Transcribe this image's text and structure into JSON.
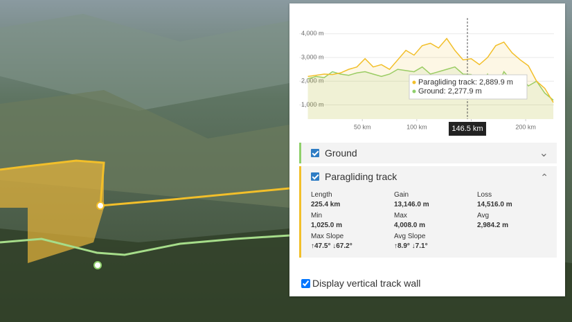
{
  "chart_data": {
    "type": "line",
    "x": [
      0,
      7.5,
      15,
      22.5,
      30,
      37.5,
      45,
      52.5,
      60,
      67.5,
      75,
      82.5,
      90,
      97.5,
      105,
      112.5,
      120,
      127.5,
      135,
      142.5,
      150,
      157.5,
      165,
      172.5,
      180,
      187.5,
      195,
      202.5,
      210,
      217.5,
      225.4
    ],
    "series": [
      {
        "name": "Ground",
        "color": "#8fcf6b",
        "values": [
          2100,
          2200,
          2150,
          2400,
          2300,
          2250,
          2350,
          2400,
          2300,
          2200,
          2300,
          2500,
          2450,
          2400,
          2600,
          2300,
          2400,
          2500,
          2600,
          2300,
          2280,
          1900,
          2300,
          1600,
          2400,
          2000,
          2200,
          1800,
          2000,
          1500,
          1200
        ]
      },
      {
        "name": "Paragliding track",
        "color": "#f2bf2a",
        "values": [
          2200,
          2250,
          2300,
          2280,
          2350,
          2500,
          2600,
          2950,
          2600,
          2700,
          2500,
          2900,
          3300,
          3100,
          3500,
          3600,
          3400,
          3800,
          3300,
          2900,
          2950,
          2700,
          3000,
          3500,
          3650,
          3200,
          2900,
          2650,
          2000,
          1700,
          1100
        ]
      }
    ],
    "xlim": [
      -8,
      226
    ],
    "ylim": [
      400,
      4900
    ],
    "xticks": [
      {
        "value": 50,
        "label": "50 km"
      },
      {
        "value": 100,
        "label": "100 km"
      },
      {
        "value": 150,
        "label": "150 km"
      },
      {
        "value": 200,
        "label": "200 km"
      }
    ],
    "yticks": [
      {
        "value": 1000,
        "label": "1,000 m"
      },
      {
        "value": 2000,
        "label": "2,000 m"
      },
      {
        "value": 3000,
        "label": "3,000 m"
      },
      {
        "value": 4000,
        "label": "4,000 m"
      }
    ],
    "grid": true,
    "cursor": {
      "value": 146.5,
      "label": "146.5 km"
    }
  },
  "tooltip": [
    "Paragliding track: 2,889.9 m",
    "Ground: 2,277.9 m"
  ],
  "statistics": [
    {
      "label": "Length",
      "value": "225.4 km"
    },
    {
      "label": "Gain",
      "value": "13,146.0 m"
    },
    {
      "label": "Loss",
      "value": "14,516.0 m"
    },
    {
      "label": "Min",
      "value": "1,025.0 m"
    },
    {
      "label": "Max",
      "value": "4,008.0 m"
    },
    {
      "label": "Avg",
      "value": "2,984.2 m"
    },
    {
      "label": "Max Slope",
      "value": "↑47.5°  ↓67.2°"
    },
    {
      "label": "Avg Slope",
      "value": "↑8.9°  ↓7.1°"
    }
  ],
  "wall_option": "Display vertical track wall"
}
